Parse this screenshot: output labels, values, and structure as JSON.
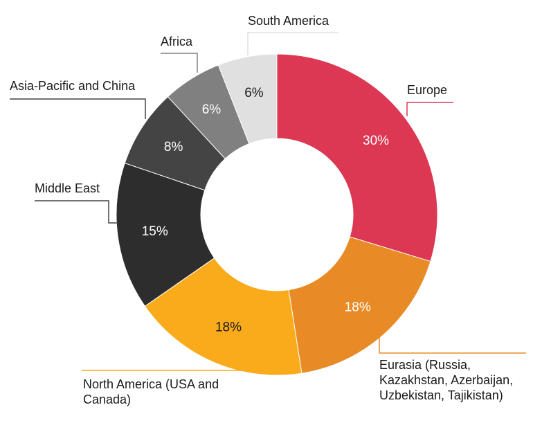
{
  "chart_data": {
    "type": "donut",
    "categories": [
      "Europe",
      "Eurasia (Russia, Kazakhstan, Azerbaijan, Uzbekistan, Tajikistan)",
      "North America (USA and Canada)",
      "Middle East",
      "Asia-Pacific and China",
      "Africa",
      "South America"
    ],
    "values": [
      30,
      18,
      18,
      15,
      8,
      6,
      6
    ],
    "value_labels": [
      "30%",
      "18%",
      "18%",
      "15%",
      "8%",
      "6%",
      "6%"
    ],
    "colors": [
      "#dc3753",
      "#e88b26",
      "#f9ab1b",
      "#2d2d2d",
      "#444444",
      "#808080",
      "#e0e0e0"
    ]
  }
}
